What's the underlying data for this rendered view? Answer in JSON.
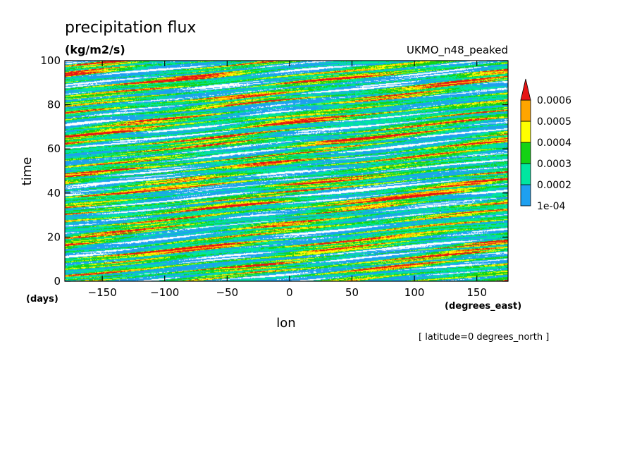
{
  "chart_data": {
    "type": "heatmap",
    "title": "precipitation flux",
    "units": "(kg/m2/s)",
    "model": "UKMO_n48_peaked",
    "xlabel": "lon",
    "ylabel": "time",
    "x_units": "(degrees_east)",
    "y_units": "(days)",
    "footnote": "[ latitude=0 degrees_north ]",
    "xlim": [
      -180,
      175
    ],
    "ylim": [
      0,
      100
    ],
    "x_ticks": [
      -150,
      -100,
      -50,
      0,
      50,
      100,
      150
    ],
    "y_ticks": [
      0,
      20,
      40,
      60,
      80,
      100
    ],
    "grid": false,
    "legend": "right",
    "colorbar": {
      "levels": [
        "1e-04",
        "0.0002",
        "0.0003",
        "0.0004",
        "0.0005",
        "0.0006"
      ],
      "colors": {
        "below": "#ffffff",
        "1e-04_to_0.0002": "#1ea0f0",
        "0.0002_to_0.0003": "#00e6a0",
        "0.0003_to_0.0004": "#14d214",
        "0.0004_to_0.0005": "#ffff00",
        "0.0005_to_0.0006": "#ffa500",
        "above": "#e61414"
      }
    },
    "field_description_levels_fraction": {
      "white_lt_1e-04": 0.06,
      "blue": 0.25,
      "cyan_green": 0.3,
      "green": 0.22,
      "yellow": 0.1,
      "orange": 0.05,
      "red": 0.02
    },
    "propagation": "eastward streaks, rising with longitude"
  }
}
